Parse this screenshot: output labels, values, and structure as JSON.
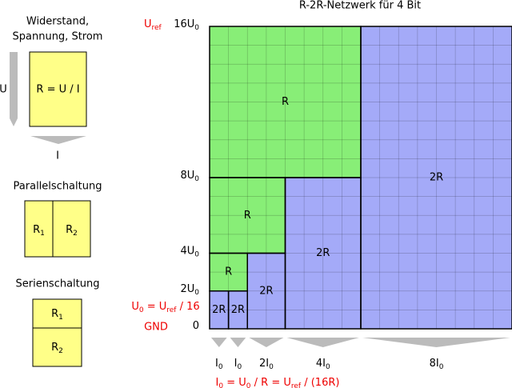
{
  "title": "R-2R-Netzwerk für 4 Bit",
  "resistance": {
    "title_lines": [
      "Widerstand,",
      "Spannung, Strom"
    ],
    "formula": "R = U / I",
    "voltage": "U",
    "current": "I"
  },
  "parallel": {
    "title": "Parallelschaltung",
    "r1": [
      {
        "t": "R"
      },
      {
        "sub": "1"
      }
    ],
    "r2": [
      {
        "t": "R"
      },
      {
        "sub": "2"
      }
    ]
  },
  "series": {
    "title": "Serienschaltung",
    "r1": [
      {
        "t": "R"
      },
      {
        "sub": "1"
      }
    ],
    "r2": [
      {
        "t": "R"
      },
      {
        "sub": "2"
      }
    ]
  },
  "uref": [
    {
      "t": "U"
    },
    {
      "sub": "ref"
    }
  ],
  "voltage_labels": [
    [
      {
        "t": "16U"
      },
      {
        "sub": "0"
      }
    ],
    [
      {
        "t": "8U"
      },
      {
        "sub": "0"
      }
    ],
    [
      {
        "t": "4U"
      },
      {
        "sub": "0"
      }
    ],
    [
      {
        "t": "2U"
      },
      {
        "sub": "0"
      }
    ],
    [
      {
        "t": "0"
      }
    ]
  ],
  "u0_formula": [
    {
      "t": "U"
    },
    {
      "sub": "0"
    },
    {
      "t": " = U"
    },
    {
      "sub": "ref"
    },
    {
      "t": " / 16"
    }
  ],
  "gnd": "GND",
  "blocks": [
    "R",
    "2R",
    "R",
    "2R",
    "R",
    "2R",
    "2R",
    "2R"
  ],
  "currents": [
    [
      {
        "t": "I"
      },
      {
        "sub": "0"
      }
    ],
    [
      {
        "t": "I"
      },
      {
        "sub": "0"
      }
    ],
    [
      {
        "t": "2I"
      },
      {
        "sub": "0"
      }
    ],
    [
      {
        "t": "4I"
      },
      {
        "sub": "0"
      }
    ],
    [
      {
        "t": "8I"
      },
      {
        "sub": "0"
      }
    ]
  ],
  "i0_formula": [
    {
      "t": "I"
    },
    {
      "sub": "0"
    },
    {
      "t": " = U"
    },
    {
      "sub": "0"
    },
    {
      "t": " / R = U"
    },
    {
      "sub": "ref"
    },
    {
      "t": " / (16R)"
    }
  ]
}
